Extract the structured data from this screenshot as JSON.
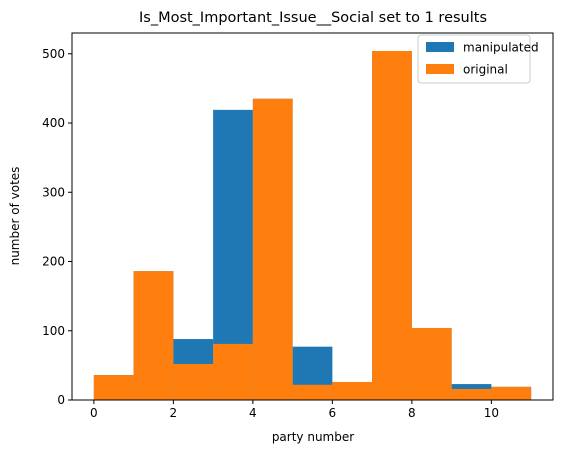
{
  "colors": {
    "manipulated": "#1f77b4",
    "original": "#ff7f0e"
  },
  "chart_data": {
    "type": "bar",
    "title": "Is_Most_Important_Issue__Social set to 1 results",
    "xlabel": "party number",
    "ylabel": "number of votes",
    "xlim": [
      -0.55,
      11.55
    ],
    "ylim": [
      0,
      530
    ],
    "xticks": [
      0,
      2,
      4,
      6,
      8,
      10
    ],
    "yticks": [
      0,
      100,
      200,
      300,
      400,
      500
    ],
    "legend_position": "top-right",
    "series": [
      {
        "name": "manipulated",
        "bins": [
          {
            "x0": 0,
            "x1": 1,
            "value": 36
          },
          {
            "x0": 1,
            "x1": 2,
            "value": 186
          },
          {
            "x0": 2,
            "x1": 3,
            "value": 88
          },
          {
            "x0": 3,
            "x1": 4,
            "value": 419
          },
          {
            "x0": 4,
            "x1": 5,
            "value": 435
          },
          {
            "x0": 5,
            "x1": 6,
            "value": 77
          },
          {
            "x0": 6,
            "x1": 7,
            "value": 26
          },
          {
            "x0": 7,
            "x1": 8,
            "value": 504
          },
          {
            "x0": 8,
            "x1": 9,
            "value": 104
          },
          {
            "x0": 9,
            "x1": 10,
            "value": 23
          },
          {
            "x0": 10,
            "x1": 11,
            "value": 19
          }
        ]
      },
      {
        "name": "original",
        "bins": [
          {
            "x0": 0,
            "x1": 1,
            "value": 36
          },
          {
            "x0": 1,
            "x1": 2,
            "value": 186
          },
          {
            "x0": 2,
            "x1": 3,
            "value": 52
          },
          {
            "x0": 3,
            "x1": 4,
            "value": 81
          },
          {
            "x0": 4,
            "x1": 5,
            "value": 435
          },
          {
            "x0": 5,
            "x1": 6,
            "value": 22
          },
          {
            "x0": 6,
            "x1": 7,
            "value": 26
          },
          {
            "x0": 7,
            "x1": 8,
            "value": 504
          },
          {
            "x0": 8,
            "x1": 9,
            "value": 104
          },
          {
            "x0": 9,
            "x1": 10,
            "value": 16
          },
          {
            "x0": 10,
            "x1": 11,
            "value": 19
          }
        ]
      }
    ]
  }
}
